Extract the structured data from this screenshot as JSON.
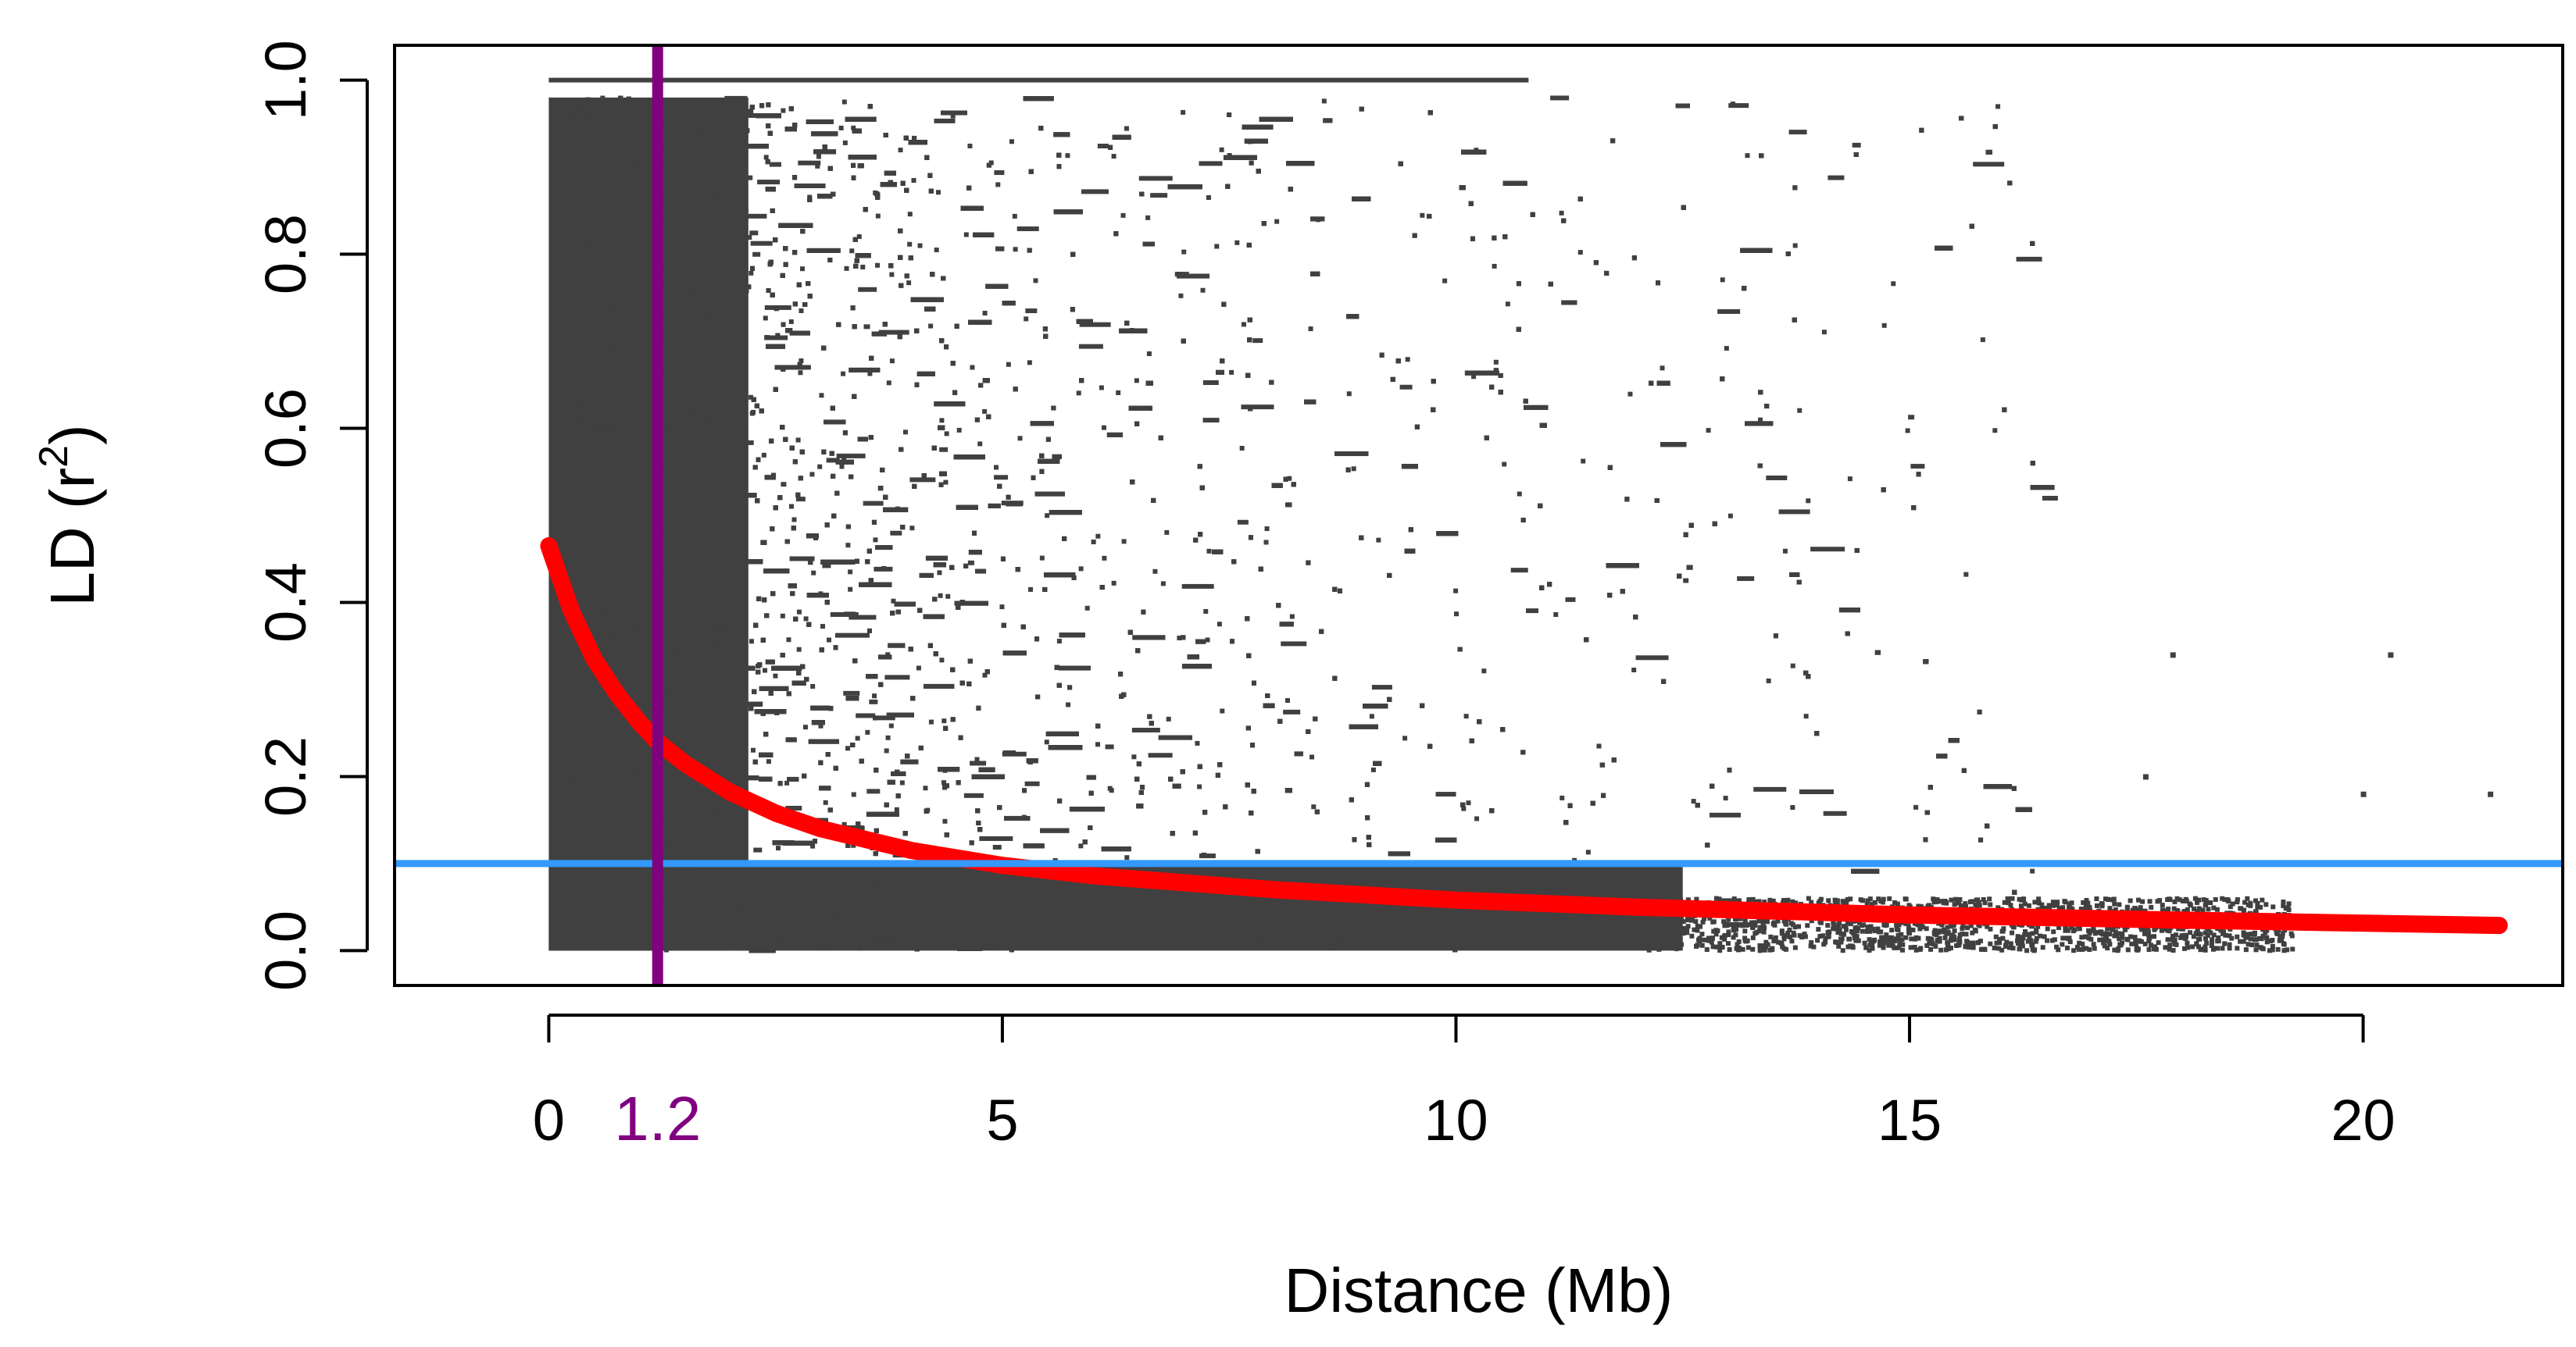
{
  "chart_data": {
    "type": "scatter",
    "title": "",
    "xlabel": "Distance (Mb)",
    "ylabel_main": "LD (r",
    "ylabel_sup": "2",
    "ylabel_end": ")",
    "xlim": [
      -1.7,
      22.2
    ],
    "ylim": [
      -0.04,
      1.04
    ],
    "xticks": [
      0,
      5,
      10,
      15,
      20
    ],
    "yticks": [
      0.0,
      0.2,
      0.4,
      0.6,
      0.8,
      1.0
    ],
    "xtick_labels": [
      "0",
      "5",
      "10",
      "15",
      "20"
    ],
    "ytick_labels": [
      "0.0",
      "0.2",
      "0.4",
      "0.6",
      "0.8",
      "1.0"
    ],
    "grid": false,
    "legend": "none",
    "colors": {
      "points": "#404040",
      "decay_curve": "#ff0000",
      "threshold_line": "#3399ff",
      "decay_distance_line": "#800080"
    },
    "series": [
      {
        "type": "scatter",
        "description_of_density": "dense LD r2 cloud",
        "x_range": [
          0,
          21.5
        ],
        "y_range": [
          0,
          1.0
        ],
        "dense_block_x_range": [
          0,
          1.2
        ],
        "density_profile": [
          {
            "x": 0.0,
            "ymax": 0.98
          },
          {
            "x": 2.0,
            "ymax": 0.98
          },
          {
            "x": 5.0,
            "ymax": 0.97
          },
          {
            "x": 10.0,
            "ymax": 0.95
          },
          {
            "x": 15.0,
            "ymax": 0.97
          },
          {
            "x": 16.4,
            "ymax": 0.97
          },
          {
            "x": 19.2,
            "ymax": 0.02
          }
        ],
        "sparse_outliers": [
          {
            "x": 17.9,
            "y": 0.34
          },
          {
            "x": 20.3,
            "y": 0.34
          },
          {
            "x": 21.4,
            "y": 0.18
          },
          {
            "x": 20.0,
            "y": 0.18
          },
          {
            "x": 17.6,
            "y": 0.2
          }
        ]
      },
      {
        "type": "line",
        "description": "LD decay fit",
        "x": [
          0,
          0.25,
          0.5,
          0.75,
          1.0,
          1.2,
          1.5,
          2.0,
          2.5,
          3.0,
          4.0,
          5.0,
          6.0,
          8.0,
          10.0,
          12.0,
          15.0,
          18.0,
          21.5
        ],
        "y": [
          0.465,
          0.39,
          0.335,
          0.295,
          0.262,
          0.24,
          0.215,
          0.182,
          0.158,
          0.14,
          0.115,
          0.098,
          0.086,
          0.07,
          0.058,
          0.05,
          0.041,
          0.035,
          0.029
        ]
      }
    ],
    "reference_lines": {
      "horizontal": {
        "y": 0.1
      },
      "vertical": {
        "x": 1.2,
        "label": "1.2"
      }
    }
  }
}
